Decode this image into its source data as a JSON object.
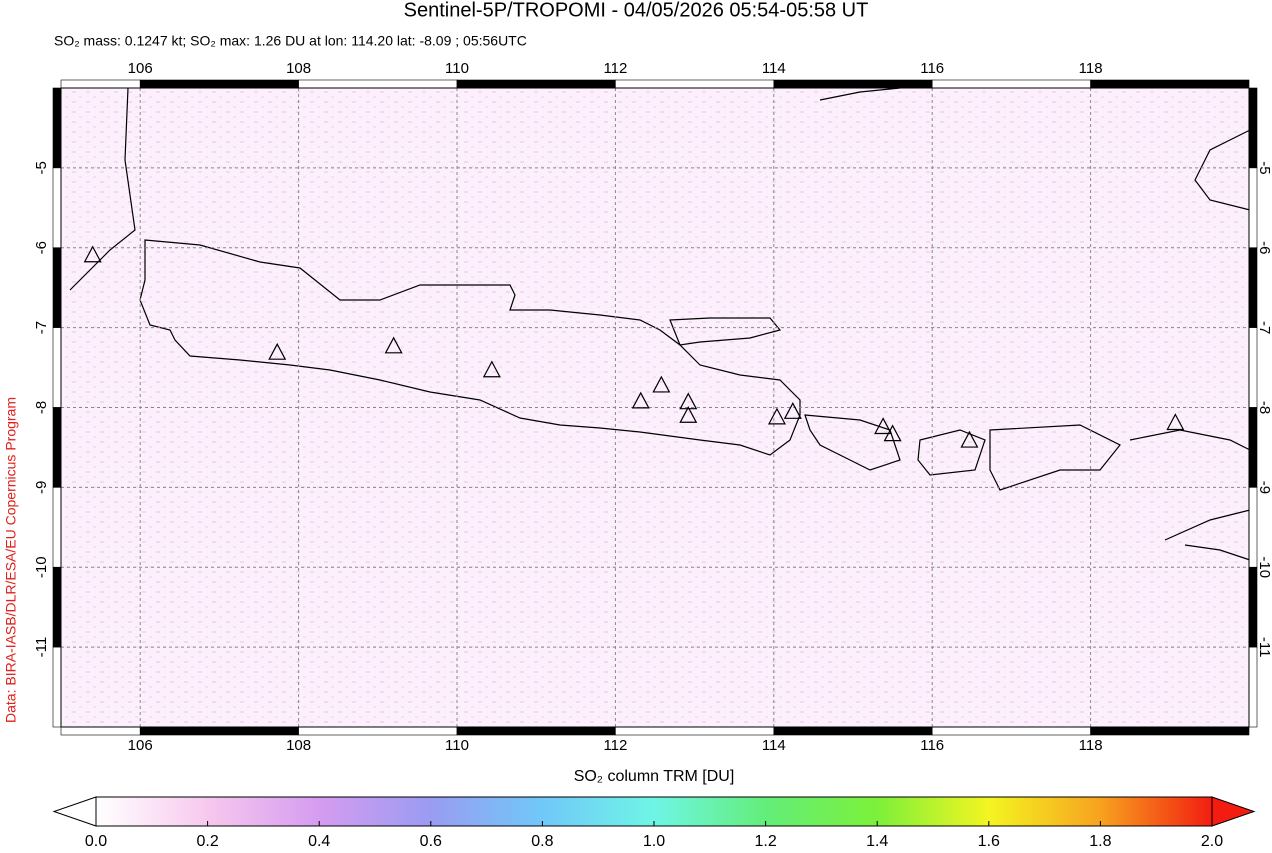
{
  "chart_data": {
    "type": "scatter",
    "title": "Sentinel-5P/TROPOMI - 04/05/2026 05:54-05:58 UT",
    "subtitle": "SO₂ mass: 0.1247 kt; SO₂ max: 1.26 DU at lon: 114.20 lat: -8.09 ; 05:56UTC",
    "credit": "Data: BIRA-IASB/DLR/ESA/EU Copernicus Program",
    "xlim": [
      105,
      120
    ],
    "ylim": [
      -12,
      -4
    ],
    "xticks": [
      106,
      108,
      110,
      112,
      114,
      116,
      118
    ],
    "yticks": [
      -11,
      -10,
      -9,
      -8,
      -7,
      -6,
      -5
    ],
    "grid": true,
    "marker": "triangle",
    "x": [
      105.4,
      107.73,
      109.2,
      110.44,
      112.32,
      112.58,
      112.92,
      112.92,
      114.04,
      114.24,
      115.38,
      115.5,
      116.47,
      119.07
    ],
    "values": [
      -6.1,
      -7.32,
      -7.24,
      -7.54,
      -7.93,
      -7.73,
      -7.94,
      -8.11,
      -8.13,
      -8.06,
      -8.25,
      -8.34,
      -8.42,
      -8.2
    ],
    "colorbar": {
      "label": "SO₂ column TRM [DU]",
      "lim": [
        0,
        2
      ],
      "ticks": [
        {
          "value": 0,
          "label": "0.0"
        },
        {
          "value": 0.2,
          "label": "0.2"
        },
        {
          "value": 0.4,
          "label": "0.4"
        },
        {
          "value": 0.6,
          "label": "0.6"
        },
        {
          "value": 0.8,
          "label": "0.8"
        },
        {
          "value": 1,
          "label": "1.0"
        },
        {
          "value": 1.2,
          "label": "1.2"
        },
        {
          "value": 1.4,
          "label": "1.4"
        },
        {
          "value": 1.6,
          "label": "1.6"
        },
        {
          "value": 1.8,
          "label": "1.8"
        },
        {
          "value": 2,
          "label": "2.0"
        }
      ],
      "colors": [
        "#ffffff",
        "#f7c8ee",
        "#d59cf0",
        "#9a9cf2",
        "#70c8f8",
        "#6ff5e6",
        "#63ee7a",
        "#7cf03a",
        "#f4f521",
        "#f7a21f",
        "#f21d10"
      ]
    }
  }
}
